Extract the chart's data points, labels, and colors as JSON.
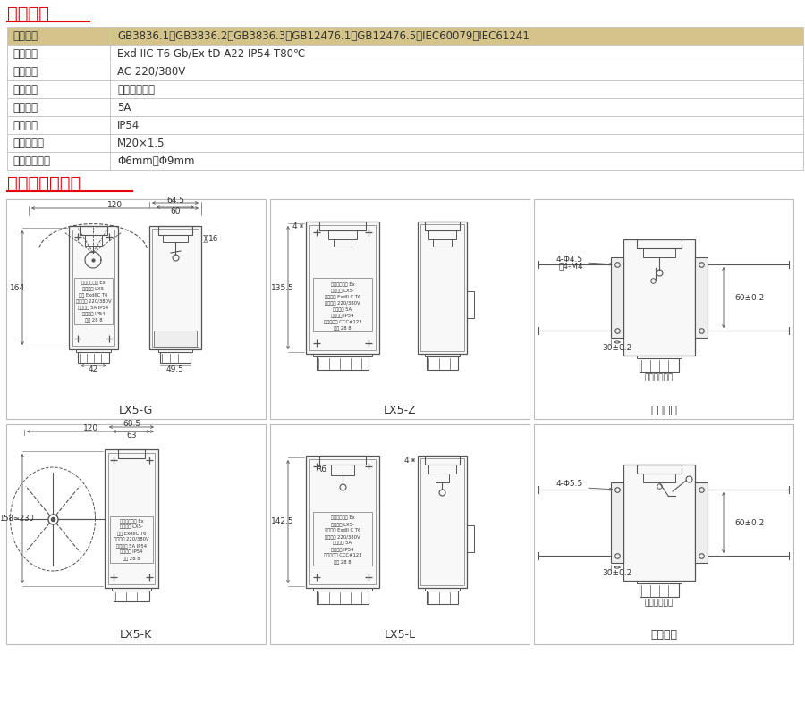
{
  "title_tech": "技术参数",
  "title_dims": "外形及安装尺寸",
  "title_color": "#E8000A",
  "header_bg": "#D4C48A",
  "bg_color": "#FFFFFF",
  "border_color": "#C8C8C8",
  "line_color": "#555555",
  "table_rows": [
    [
      "执行标准",
      "GB3836.1、GB3836.2、GB3836.3、GB12476.1、GB12476.5、IEC60079、IEC61241"
    ],
    [
      "防爆标志",
      "Exd IIC T6 Gb/Ex tD A22 IP54 T80℃"
    ],
    [
      "额定电压",
      "AC 220/380V"
    ],
    [
      "触头型式",
      "一常开一常闭"
    ],
    [
      "额定电流",
      "5A"
    ],
    [
      "防护等级",
      "IP54"
    ],
    [
      "引入口规格",
      "M20×1.5"
    ],
    [
      "适用电缆外径",
      "Φ6mm～Φ9mm"
    ]
  ],
  "panel_labels": [
    "LX5-G",
    "LX5-Z",
    "正面安装",
    "LX5-K",
    "LX5-L",
    "背面安装"
  ],
  "lx5g_dims": [
    "120",
    "64.5",
    "60",
    "16",
    "164",
    "42",
    "49.5"
  ],
  "lx5z_dims": [
    "135.5",
    "4"
  ],
  "lx5k_dims": [
    "120",
    "68.5",
    "63",
    "158~230"
  ],
  "lx5l_dims": [
    "142.5",
    "R6",
    "4"
  ],
  "front_dims": [
    "4-Φ4.5",
    "或4-M4",
    "60±0.2",
    "30±0.2",
    "安装孔加工图"
  ],
  "back_dims": [
    "4-Φ5.5",
    "60±0.2",
    "30±0.2",
    "安装孔加工图"
  ]
}
